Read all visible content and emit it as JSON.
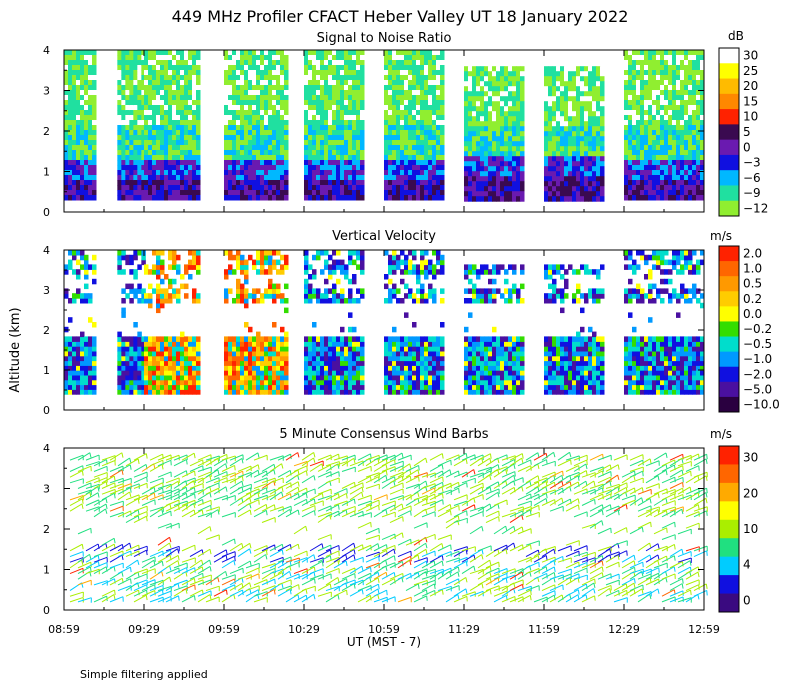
{
  "figure": {
    "title": "449 MHz Profiler CFACT Heber Valley UT 18 January 2022",
    "ylabel": "Altitude (km)",
    "xlabel": "UT  (MST - 7)",
    "footnote": "Simple filtering applied"
  },
  "chart_data": [
    {
      "type": "heatmap",
      "title": "Signal to Noise Ratio",
      "units": "dB",
      "x_ticks": [
        "08:59",
        "09:29",
        "09:59",
        "10:29",
        "10:59",
        "11:29",
        "11:59",
        "12:29",
        "12:59"
      ],
      "y_ticks": [
        "0",
        "1",
        "2",
        "3",
        "4"
      ],
      "ylim": [
        0,
        4
      ],
      "colorbar": {
        "labels": [
          "30",
          "25",
          "20",
          "15",
          "10",
          "5",
          "0",
          "−3",
          "−6",
          "−9",
          "−12"
        ],
        "colors": [
          "#ffffff",
          "#ffff00",
          "#ffbb00",
          "#ff8800",
          "#ff2200",
          "#3a0a50",
          "#6a1ab0",
          "#1010e0",
          "#00b8ff",
          "#20e0a0",
          "#90ee30"
        ]
      },
      "blocks": [
        {
          "start": "08:59",
          "end": "09:11",
          "top_km": 4.0
        },
        {
          "start": "09:19",
          "end": "09:29",
          "top_km": 4.0
        },
        {
          "start": "09:29",
          "end": "09:50",
          "top_km": 4.0
        },
        {
          "start": "09:59",
          "end": "10:22",
          "top_km": 4.0
        },
        {
          "start": "10:29",
          "end": "10:51",
          "top_km": 4.0
        },
        {
          "start": "10:59",
          "end": "11:21",
          "top_km": 4.0
        },
        {
          "start": "11:29",
          "end": "11:51",
          "top_km": 3.6
        },
        {
          "start": "11:59",
          "end": "12:21",
          "top_km": 3.6
        },
        {
          "start": "12:29",
          "end": "12:59",
          "top_km": 4.0
        }
      ]
    },
    {
      "type": "heatmap",
      "title": "Vertical Velocity",
      "units": "m/s",
      "x_ticks": [
        "08:59",
        "09:29",
        "09:59",
        "10:29",
        "10:59",
        "11:29",
        "11:59",
        "12:29",
        "12:59"
      ],
      "y_ticks": [
        "0",
        "1",
        "2",
        "3",
        "4"
      ],
      "ylim": [
        0,
        4
      ],
      "colorbar": {
        "labels": [
          "2.0",
          "1.0",
          "0.5",
          "0.2",
          "0.0",
          "−0.2",
          "−0.5",
          "−1.0",
          "−2.0",
          "−5.0",
          "−10.0"
        ],
        "colors": [
          "#ff2200",
          "#ff6600",
          "#ff9900",
          "#ffcc00",
          "#ffff00",
          "#33dd00",
          "#00ddcc",
          "#0099ff",
          "#1010e0",
          "#4a10a0",
          "#2a0040"
        ]
      }
    },
    {
      "type": "wind_barbs",
      "title": "5 Minute Consensus Wind Barbs",
      "units": "m/s",
      "x_ticks": [
        "08:59",
        "09:29",
        "09:59",
        "10:29",
        "10:59",
        "11:29",
        "11:59",
        "12:29",
        "12:59"
      ],
      "y_ticks": [
        "0",
        "1",
        "2",
        "3",
        "4"
      ],
      "ylim": [
        0,
        4
      ],
      "colorbar": {
        "labels": [
          "30",
          "20",
          "10",
          "4",
          "0"
        ],
        "colors": [
          "#ff2200",
          "#ff6600",
          "#ffaa00",
          "#ffff00",
          "#aaee00",
          "#20e080",
          "#00ccff",
          "#1010e0",
          "#3a0a80"
        ]
      }
    }
  ]
}
